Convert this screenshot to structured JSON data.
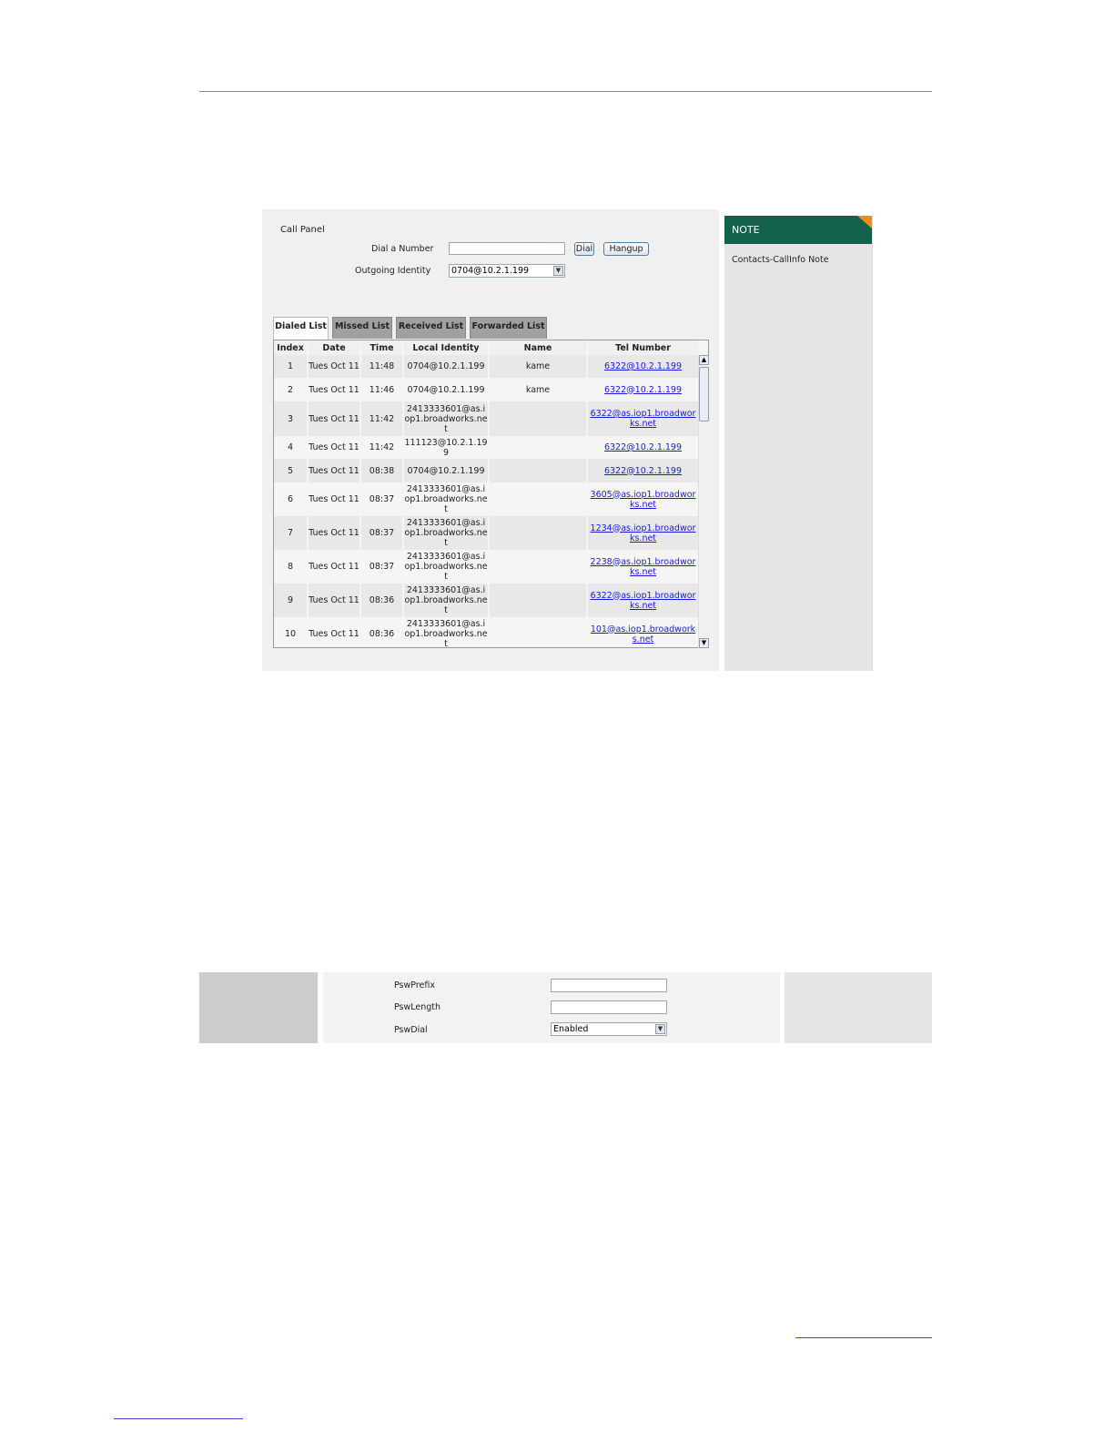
{
  "call_panel": {
    "title": "Call Panel",
    "dial_label": "Dial a Number",
    "dial_value": "",
    "dial_button": "Dial",
    "hangup_button": "Hangup",
    "identity_label": "Outgoing Identity",
    "identity_value": "0704@10.2.1.199"
  },
  "tabs": [
    {
      "label": "Dialed List",
      "active": true
    },
    {
      "label": "Missed List"
    },
    {
      "label": "Received List"
    },
    {
      "label": "Forwarded List"
    }
  ],
  "table": {
    "columns": [
      "Index",
      "Date",
      "Time",
      "Local Identity",
      "Name",
      "Tel Number"
    ],
    "rows": [
      {
        "index": "1",
        "date": "Tues Oct 11",
        "time": "11:48",
        "local": "0704@10.2.1.199",
        "name": "kame",
        "tel": "6322@10.2.1.199"
      },
      {
        "index": "2",
        "date": "Tues Oct 11",
        "time": "11:46",
        "local": "0704@10.2.1.199",
        "name": "kame",
        "tel": "6322@10.2.1.199"
      },
      {
        "index": "3",
        "date": "Tues Oct 11",
        "time": "11:42",
        "local": "2413333601@as.iop1.broadworks.net",
        "name": "",
        "tel": "6322@as.iop1.broadworks.net"
      },
      {
        "index": "4",
        "date": "Tues Oct 11",
        "time": "11:42",
        "local": "111123@10.2.1.199",
        "name": "",
        "tel": "6322@10.2.1.199"
      },
      {
        "index": "5",
        "date": "Tues Oct 11",
        "time": "08:38",
        "local": "0704@10.2.1.199",
        "name": "",
        "tel": "6322@10.2.1.199"
      },
      {
        "index": "6",
        "date": "Tues Oct 11",
        "time": "08:37",
        "local": "2413333601@as.iop1.broadworks.net",
        "name": "",
        "tel": "3605@as.iop1.broadworks.net"
      },
      {
        "index": "7",
        "date": "Tues Oct 11",
        "time": "08:37",
        "local": "2413333601@as.iop1.broadworks.net",
        "name": "",
        "tel": "1234@as.iop1.broadworks.net"
      },
      {
        "index": "8",
        "date": "Tues Oct 11",
        "time": "08:37",
        "local": "2413333601@as.iop1.broadworks.net",
        "name": "",
        "tel": "2238@as.iop1.broadworks.net"
      },
      {
        "index": "9",
        "date": "Tues Oct 11",
        "time": "08:36",
        "local": "2413333601@as.iop1.broadworks.net",
        "name": "",
        "tel": "6322@as.iop1.broadworks.net"
      },
      {
        "index": "10",
        "date": "Tues Oct 11",
        "time": "08:36",
        "local": "2413333601@as.iop1.broadworks.net",
        "name": "",
        "tel": "101@as.iop1.broadworks.net"
      }
    ]
  },
  "note": {
    "title": "NOTE",
    "text": "Contacts-CallInfo Note",
    "accent": "#12614a",
    "corner": "#f28a1c"
  },
  "psw": {
    "prefix_label": "PswPrefix",
    "prefix_value": "",
    "length_label": "PswLength",
    "length_value": "",
    "dial_label": "PswDial",
    "dial_value": "Enabled"
  }
}
